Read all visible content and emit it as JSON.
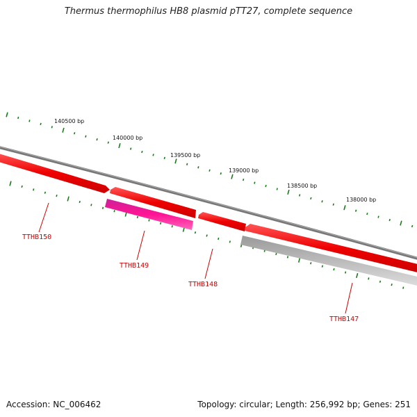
{
  "title": "Thermus thermophilus HB8 plasmid pTT27, complete sequence",
  "scale_labels": [
    {
      "text": "140500 bp",
      "position": 140500
    },
    {
      "text": "140000 bp",
      "position": 140000
    },
    {
      "text": "139500 bp",
      "position": 139500
    },
    {
      "text": "139000 bp",
      "position": 139000
    },
    {
      "text": "138500 bp",
      "position": 138500
    },
    {
      "text": "138000 bp",
      "position": 138000
    }
  ],
  "genes": [
    {
      "name": "TTHB150",
      "strand": "forward",
      "color": "#ee0000"
    },
    {
      "name": "TTHB149",
      "strand": "reverse",
      "color": "#ee1188"
    },
    {
      "name": "TTHB148",
      "strand": "forward",
      "color": "#ee0000"
    },
    {
      "name": "TTHB147",
      "strand": "reverse",
      "color": "#bbbbbb"
    }
  ],
  "colors": {
    "backbone": "#777777",
    "tick_marks": "#1a7a1a",
    "label_line": "#cc0000"
  },
  "footer": {
    "accession": "Accession: NC_006462",
    "topology": "Topology: circular; Length: 256,992 bp; Genes: 251"
  }
}
